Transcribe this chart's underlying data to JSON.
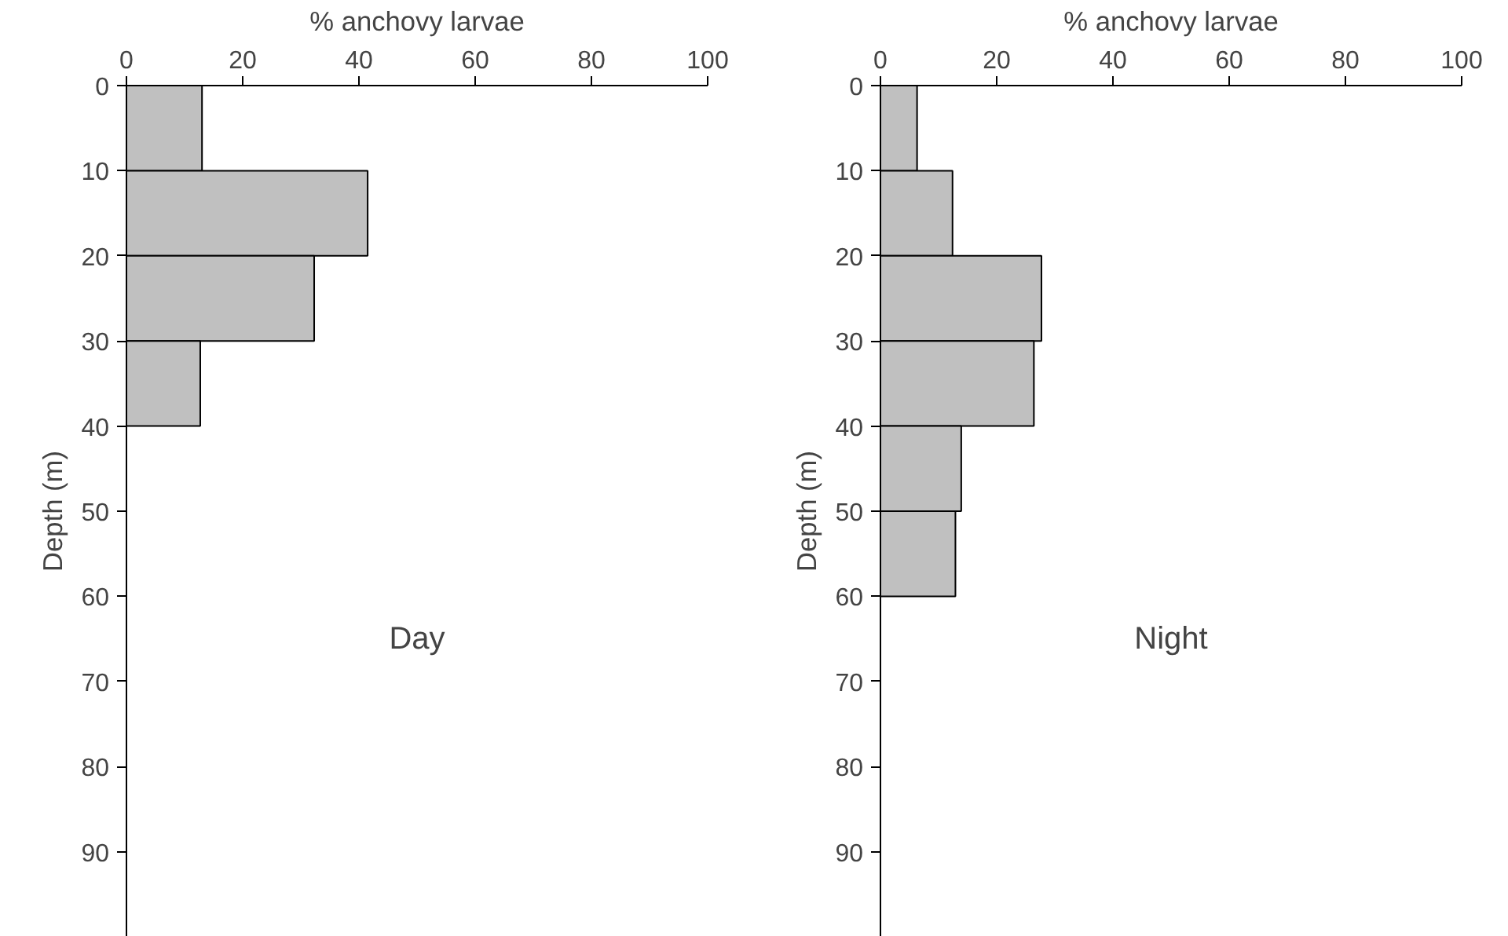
{
  "chart_data": [
    {
      "type": "histogram",
      "orientation": "horizontal",
      "xlabel": "% anchovy larvae",
      "ylabel": "Depth (m)",
      "annotations": [
        "Day"
      ],
      "bins": [
        0,
        10,
        20,
        30,
        40
      ],
      "values": [
        13,
        41.5,
        32.3,
        12.7
      ],
      "color": "#c0c0c0",
      "xlim": [
        0,
        100
      ],
      "xticks": [
        0,
        20,
        40,
        60,
        80,
        100
      ],
      "ylim": [
        100,
        0
      ],
      "yticks": [
        0,
        10,
        20,
        30,
        40,
        50,
        60,
        70,
        80,
        90
      ],
      "grid": false
    },
    {
      "type": "histogram",
      "orientation": "horizontal",
      "xlabel": "% anchovy larvae",
      "ylabel": "Depth (m)",
      "annotations": [
        "Night"
      ],
      "bins": [
        0,
        10,
        20,
        30,
        40,
        50,
        60
      ],
      "values": [
        6.3,
        12.4,
        27.7,
        26.4,
        13.9,
        12.9
      ],
      "color": "#c0c0c0",
      "xlim": [
        0,
        100
      ],
      "xticks": [
        0,
        20,
        40,
        60,
        80,
        100
      ],
      "ylim": [
        100,
        0
      ],
      "yticks": [
        0,
        10,
        20,
        30,
        40,
        50,
        60,
        70,
        80,
        90
      ],
      "grid": false
    }
  ]
}
